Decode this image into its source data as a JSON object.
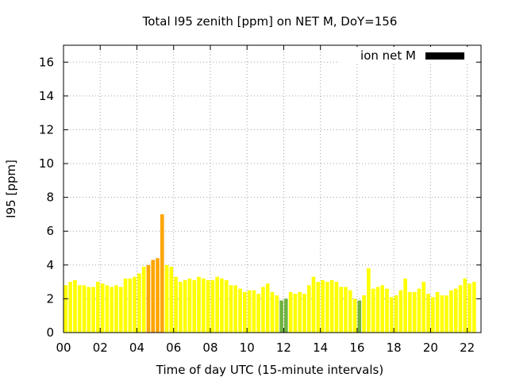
{
  "chart_data": {
    "type": "bar",
    "title": "Total I95 zenith [ppm] on NET M, DoY=156",
    "xlabel": "Time of day UTC (15-minute intervals)",
    "ylabel": "I95 [ppm]",
    "xlim": [
      0,
      22.75
    ],
    "ylim": [
      0,
      17
    ],
    "xticks": [
      0,
      2,
      4,
      6,
      8,
      10,
      12,
      14,
      16,
      18,
      20,
      22
    ],
    "xtick_labels": [
      "00",
      "02",
      "04",
      "06",
      "08",
      "10",
      "12",
      "14",
      "16",
      "18",
      "20",
      "22"
    ],
    "yticks": [
      0,
      2,
      4,
      6,
      8,
      10,
      12,
      14,
      16
    ],
    "ytick_labels": [
      "0",
      "2",
      "4",
      "6",
      "8",
      "10",
      "12",
      "14",
      "16"
    ],
    "grid": true,
    "legend": {
      "label": "ion net M",
      "color": "#000000",
      "position": "top-right"
    },
    "bar_interval_hours": 0.25,
    "colors": {
      "yellow": "#ffff00",
      "orange": "#ffa500",
      "green": "#6fb33f",
      "legend": "#000000"
    },
    "values": [
      2.8,
      3.0,
      3.1,
      2.8,
      2.8,
      2.7,
      2.7,
      3.0,
      2.9,
      2.8,
      2.7,
      2.8,
      2.7,
      3.2,
      3.2,
      3.3,
      3.5,
      3.9,
      4.0,
      4.3,
      4.4,
      7.0,
      4.0,
      3.9,
      3.3,
      3.0,
      3.1,
      3.2,
      3.1,
      3.3,
      3.2,
      3.1,
      3.1,
      3.3,
      3.2,
      3.1,
      2.8,
      2.8,
      2.6,
      2.4,
      2.5,
      2.5,
      2.3,
      2.7,
      2.9,
      2.4,
      2.2,
      1.9,
      2.0,
      2.4,
      2.3,
      2.4,
      2.3,
      2.8,
      3.3,
      3.0,
      3.1,
      3.0,
      3.1,
      3.0,
      2.7,
      2.7,
      2.5,
      2.0,
      1.9,
      2.2,
      3.8,
      2.6,
      2.7,
      2.8,
      2.6,
      2.1,
      2.2,
      2.5,
      3.2,
      2.4,
      2.4,
      2.6,
      3.0,
      2.3,
      2.1,
      2.4,
      2.2,
      2.2,
      2.5,
      2.6,
      2.8,
      3.2,
      2.9,
      3.0
    ],
    "bar_colors": [
      "yellow",
      "yellow",
      "yellow",
      "yellow",
      "yellow",
      "yellow",
      "yellow",
      "yellow",
      "yellow",
      "yellow",
      "yellow",
      "yellow",
      "yellow",
      "yellow",
      "yellow",
      "yellow",
      "yellow",
      "yellow",
      "orange",
      "orange",
      "orange",
      "orange",
      "yellow",
      "yellow",
      "yellow",
      "yellow",
      "yellow",
      "yellow",
      "yellow",
      "yellow",
      "yellow",
      "yellow",
      "yellow",
      "yellow",
      "yellow",
      "yellow",
      "yellow",
      "yellow",
      "yellow",
      "yellow",
      "yellow",
      "yellow",
      "yellow",
      "yellow",
      "yellow",
      "yellow",
      "yellow",
      "green",
      "green",
      "yellow",
      "yellow",
      "yellow",
      "yellow",
      "yellow",
      "yellow",
      "yellow",
      "yellow",
      "yellow",
      "yellow",
      "yellow",
      "yellow",
      "yellow",
      "yellow",
      "yellow",
      "green",
      "yellow",
      "yellow",
      "yellow",
      "yellow",
      "yellow",
      "yellow",
      "yellow",
      "yellow",
      "yellow",
      "yellow",
      "yellow",
      "yellow",
      "yellow",
      "yellow",
      "yellow",
      "yellow",
      "yellow",
      "yellow",
      "yellow",
      "yellow",
      "yellow",
      "yellow",
      "yellow",
      "yellow",
      "yellow"
    ]
  }
}
